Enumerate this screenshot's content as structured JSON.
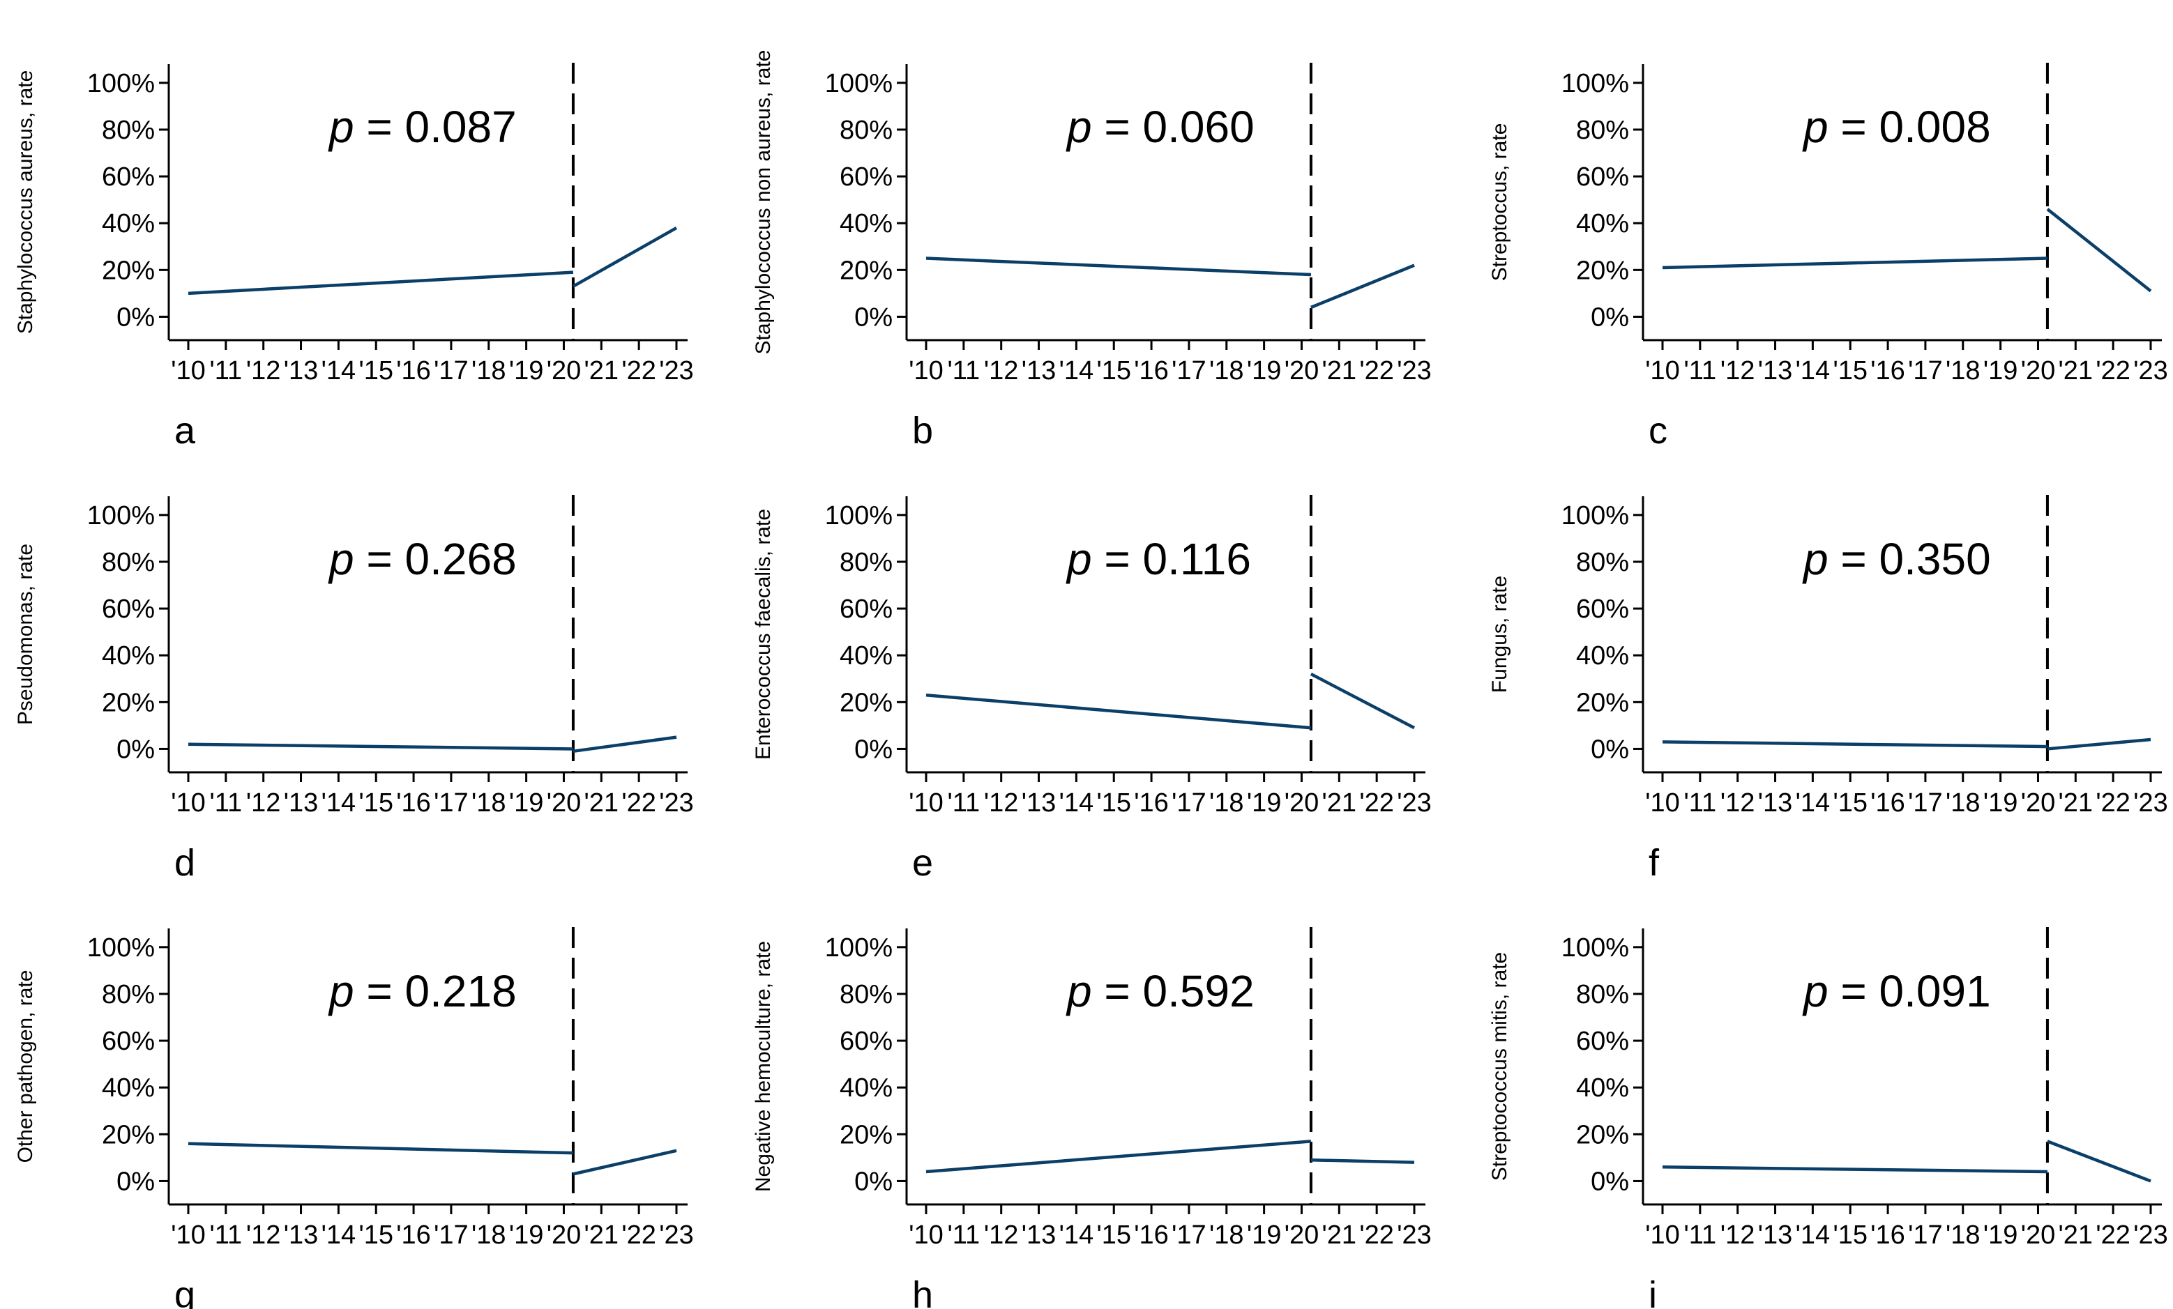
{
  "colors": {
    "series": "#0b3f68",
    "axis": "#000000",
    "text": "#000000"
  },
  "chart_data": [
    {
      "type": "line",
      "panel": "a",
      "ylabel": "Staphylococcus aureus, rate",
      "p_label": "p",
      "p_value": "= 0.087",
      "x_ticks": [
        "'10",
        "'11",
        "'12",
        "'13",
        "'14",
        "'15",
        "'16",
        "'17",
        "'18",
        "'19",
        "'20",
        "'21",
        "'22",
        "'23"
      ],
      "y_ticks": [
        "0%",
        "20%",
        "40%",
        "60%",
        "80%",
        "100%"
      ],
      "ylim": [
        -10,
        108
      ],
      "xlim": [
        2009.6,
        2023.5
      ],
      "intervention": 2020.25,
      "segments": [
        {
          "name": "pre-intervention",
          "x": [
            2010,
            2020.25
          ],
          "y": [
            10,
            19
          ]
        },
        {
          "name": "post-intervention",
          "x": [
            2020.25,
            2023
          ],
          "y": [
            13,
            38
          ]
        }
      ]
    },
    {
      "type": "line",
      "panel": "b",
      "ylabel": "Staphylococcus non aureus, rate",
      "p_label": "p",
      "p_value": "= 0.060",
      "x_ticks": [
        "'10",
        "'11",
        "'12",
        "'13",
        "'14",
        "'15",
        "'16",
        "'17",
        "'18",
        "'19",
        "'20",
        "'21",
        "'22",
        "'23"
      ],
      "y_ticks": [
        "0%",
        "20%",
        "40%",
        "60%",
        "80%",
        "100%"
      ],
      "ylim": [
        -10,
        108
      ],
      "xlim": [
        2009.6,
        2023.5
      ],
      "intervention": 2020.25,
      "segments": [
        {
          "name": "pre-intervention",
          "x": [
            2010,
            2020.25
          ],
          "y": [
            25,
            18
          ]
        },
        {
          "name": "post-intervention",
          "x": [
            2020.25,
            2023
          ],
          "y": [
            4,
            22
          ]
        }
      ]
    },
    {
      "type": "line",
      "panel": "c",
      "ylabel": "Streptoccus, rate",
      "p_label": "p",
      "p_value": "= 0.008",
      "x_ticks": [
        "'10",
        "'11",
        "'12",
        "'13",
        "'14",
        "'15",
        "'16",
        "'17",
        "'18",
        "'19",
        "'20",
        "'21",
        "'22",
        "'23"
      ],
      "y_ticks": [
        "0%",
        "20%",
        "40%",
        "60%",
        "80%",
        "100%"
      ],
      "ylim": [
        -10,
        108
      ],
      "xlim": [
        2009.6,
        2023.5
      ],
      "intervention": 2020.25,
      "segments": [
        {
          "name": "pre-intervention",
          "x": [
            2010,
            2020.25
          ],
          "y": [
            21,
            25
          ]
        },
        {
          "name": "post-intervention",
          "x": [
            2020.25,
            2023
          ],
          "y": [
            46,
            11
          ]
        }
      ]
    },
    {
      "type": "line",
      "panel": "d",
      "ylabel": "Pseudomonas, rate",
      "p_label": "p",
      "p_value": "= 0.268",
      "x_ticks": [
        "'10",
        "'11",
        "'12",
        "'13",
        "'14",
        "'15",
        "'16",
        "'17",
        "'18",
        "'19",
        "'20",
        "'21",
        "'22",
        "'23"
      ],
      "y_ticks": [
        "0%",
        "20%",
        "40%",
        "60%",
        "80%",
        "100%"
      ],
      "ylim": [
        -10,
        108
      ],
      "xlim": [
        2009.6,
        2023.5
      ],
      "intervention": 2020.25,
      "segments": [
        {
          "name": "pre-intervention",
          "x": [
            2010,
            2020.25
          ],
          "y": [
            2,
            0
          ]
        },
        {
          "name": "post-intervention",
          "x": [
            2020.25,
            2023
          ],
          "y": [
            -1,
            5
          ]
        }
      ]
    },
    {
      "type": "line",
      "panel": "e",
      "ylabel": "Enterococcus faecalis, rate",
      "p_label": "p",
      "p_value": "= 0.116",
      "x_ticks": [
        "'10",
        "'11",
        "'12",
        "'13",
        "'14",
        "'15",
        "'16",
        "'17",
        "'18",
        "'19",
        "'20",
        "'21",
        "'22",
        "'23"
      ],
      "y_ticks": [
        "0%",
        "20%",
        "40%",
        "60%",
        "80%",
        "100%"
      ],
      "ylim": [
        -10,
        108
      ],
      "xlim": [
        2009.6,
        2023.5
      ],
      "intervention": 2020.25,
      "segments": [
        {
          "name": "pre-intervention",
          "x": [
            2010,
            2020.25
          ],
          "y": [
            23,
            9
          ]
        },
        {
          "name": "post-intervention",
          "x": [
            2020.25,
            2023
          ],
          "y": [
            32,
            9
          ]
        }
      ]
    },
    {
      "type": "line",
      "panel": "f",
      "ylabel": "Fungus, rate",
      "p_label": "p",
      "p_value": "= 0.350",
      "x_ticks": [
        "'10",
        "'11",
        "'12",
        "'13",
        "'14",
        "'15",
        "'16",
        "'17",
        "'18",
        "'19",
        "'20",
        "'21",
        "'22",
        "'23"
      ],
      "y_ticks": [
        "0%",
        "20%",
        "40%",
        "60%",
        "80%",
        "100%"
      ],
      "ylim": [
        -10,
        108
      ],
      "xlim": [
        2009.6,
        2023.5
      ],
      "intervention": 2020.25,
      "segments": [
        {
          "name": "pre-intervention",
          "x": [
            2010,
            2020.25
          ],
          "y": [
            3,
            1
          ]
        },
        {
          "name": "post-intervention",
          "x": [
            2020.25,
            2023
          ],
          "y": [
            0,
            4
          ]
        }
      ]
    },
    {
      "type": "line",
      "panel": "g",
      "ylabel": "Other pathogen, rate",
      "p_label": "p",
      "p_value": "= 0.218",
      "x_ticks": [
        "'10",
        "'11",
        "'12",
        "'13",
        "'14",
        "'15",
        "'16",
        "'17",
        "'18",
        "'19",
        "'20",
        "'21",
        "'22",
        "'23"
      ],
      "y_ticks": [
        "0%",
        "20%",
        "40%",
        "60%",
        "80%",
        "100%"
      ],
      "ylim": [
        -10,
        108
      ],
      "xlim": [
        2009.6,
        2023.5
      ],
      "intervention": 2020.25,
      "segments": [
        {
          "name": "pre-intervention",
          "x": [
            2010,
            2020.25
          ],
          "y": [
            16,
            12
          ]
        },
        {
          "name": "post-intervention",
          "x": [
            2020.25,
            2023
          ],
          "y": [
            3,
            13
          ]
        }
      ]
    },
    {
      "type": "line",
      "panel": "h",
      "ylabel": "Negative hemoculture, rate",
      "p_label": "p",
      "p_value": "= 0.592",
      "x_ticks": [
        "'10",
        "'11",
        "'12",
        "'13",
        "'14",
        "'15",
        "'16",
        "'17",
        "'18",
        "'19",
        "'20",
        "'21",
        "'22",
        "'23"
      ],
      "y_ticks": [
        "0%",
        "20%",
        "40%",
        "60%",
        "80%",
        "100%"
      ],
      "ylim": [
        -10,
        108
      ],
      "xlim": [
        2009.6,
        2023.5
      ],
      "intervention": 2020.25,
      "segments": [
        {
          "name": "pre-intervention",
          "x": [
            2010,
            2020.25
          ],
          "y": [
            4,
            17
          ]
        },
        {
          "name": "post-intervention",
          "x": [
            2020.25,
            2023
          ],
          "y": [
            9,
            8
          ]
        }
      ]
    },
    {
      "type": "line",
      "panel": "i",
      "ylabel": "Streptococcus mitis, rate",
      "p_label": "p",
      "p_value": "= 0.091",
      "x_ticks": [
        "'10",
        "'11",
        "'12",
        "'13",
        "'14",
        "'15",
        "'16",
        "'17",
        "'18",
        "'19",
        "'20",
        "'21",
        "'22",
        "'23"
      ],
      "y_ticks": [
        "0%",
        "20%",
        "40%",
        "60%",
        "80%",
        "100%"
      ],
      "ylim": [
        -10,
        108
      ],
      "xlim": [
        2009.6,
        2023.5
      ],
      "intervention": 2020.25,
      "segments": [
        {
          "name": "pre-intervention",
          "x": [
            2010,
            2020.25
          ],
          "y": [
            6,
            4
          ]
        },
        {
          "name": "post-intervention",
          "x": [
            2020.25,
            2023
          ],
          "y": [
            17,
            0
          ]
        }
      ]
    }
  ]
}
